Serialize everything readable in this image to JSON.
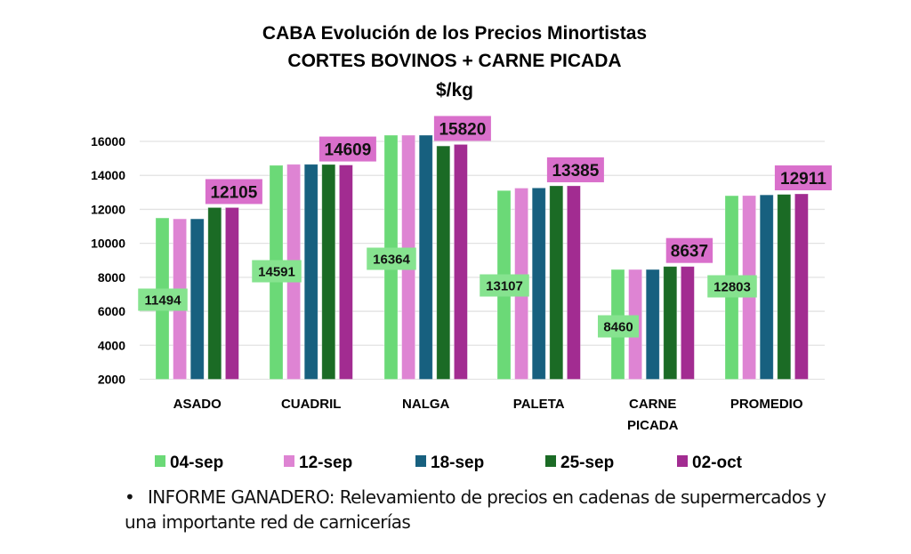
{
  "chart_data": {
    "type": "bar",
    "title": [
      "CABA Evolución de los Precios Minortistas",
      "CORTES BOVINOS + CARNE PICADA",
      "$/kg"
    ],
    "categories": [
      [
        "ASADO"
      ],
      [
        "CUADRIL"
      ],
      [
        "NALGA"
      ],
      [
        "PALETA"
      ],
      [
        "CARNE",
        "PICADA"
      ],
      [
        "PROMEDIO"
      ]
    ],
    "ylim": [
      2000,
      16000
    ],
    "yticks": [
      2000,
      4000,
      6000,
      8000,
      10000,
      12000,
      14000,
      16000
    ],
    "grid": true,
    "legend_position": "bottom",
    "xlabel": "",
    "ylabel": "",
    "series": [
      {
        "name": "04-sep",
        "color": "#6bd977",
        "values": [
          11494,
          14591,
          16364,
          13107,
          8460,
          12803
        ]
      },
      {
        "name": "12-sep",
        "color": "#de84d3",
        "values": [
          11440,
          14650,
          16364,
          13250,
          8460,
          12810
        ]
      },
      {
        "name": "18-sep",
        "color": "#17607f",
        "values": [
          11440,
          14650,
          16364,
          13260,
          8460,
          12850
        ]
      },
      {
        "name": "25-sep",
        "color": "#1b6b25",
        "values": [
          12105,
          14640,
          15730,
          13385,
          8637,
          12880
        ]
      },
      {
        "name": "02-oct",
        "color": "#a22c91",
        "values": [
          12105,
          14609,
          15820,
          13385,
          8637,
          12911
        ]
      }
    ],
    "data_labels": {
      "first": {
        "series": "04-sep",
        "values": [
          "11494",
          "14591",
          "16364",
          "13107",
          "8460",
          "12803"
        ],
        "color": "#86e38f"
      },
      "last": {
        "series": "02-oct",
        "values": [
          "12105",
          "14609",
          "15820",
          "13385",
          "8637",
          "12911"
        ],
        "color": "#d96fcb"
      }
    }
  },
  "note": {
    "bullet": "•",
    "text": "INFORME GANADERO: Relevamiento de precios en cadenas de supermercados y una importante red de carnicerías"
  }
}
